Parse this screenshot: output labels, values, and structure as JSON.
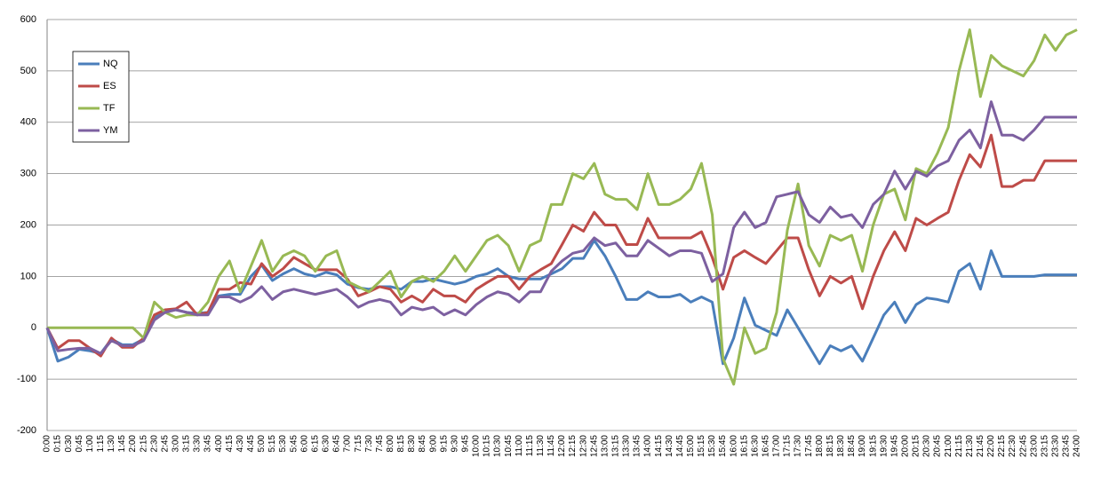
{
  "chart_data": {
    "type": "line",
    "categories": [
      "0:00",
      "0:15",
      "0:30",
      "0:45",
      "1:00",
      "1:15",
      "1:30",
      "1:45",
      "2:00",
      "2:15",
      "2:30",
      "2:45",
      "3:00",
      "3:15",
      "3:30",
      "3:45",
      "4:00",
      "4:15",
      "4:30",
      "4:45",
      "5:00",
      "5:15",
      "5:30",
      "5:45",
      "6:00",
      "6:15",
      "6:30",
      "6:45",
      "7:00",
      "7:15",
      "7:30",
      "7:45",
      "8:00",
      "8:15",
      "8:30",
      "8:45",
      "9:00",
      "9:15",
      "9:30",
      "9:45",
      "10:00",
      "10:15",
      "10:30",
      "10:45",
      "11:00",
      "11:15",
      "11:30",
      "11:45",
      "12:00",
      "12:15",
      "12:30",
      "12:45",
      "13:00",
      "13:15",
      "13:30",
      "13:45",
      "14:00",
      "14:15",
      "14:30",
      "14:45",
      "15:00",
      "15:15",
      "15:30",
      "15:45",
      "16:00",
      "16:15",
      "16:30",
      "16:45",
      "17:00",
      "17:15",
      "17:30",
      "17:45",
      "18:00",
      "18:15",
      "18:30",
      "18:45",
      "19:00",
      "19:15",
      "19:30",
      "19:45",
      "20:00",
      "20:15",
      "20:30",
      "20:45",
      "21:00",
      "21:15",
      "21:30",
      "21:45",
      "22:00",
      "22:15",
      "22:30",
      "22:45",
      "23:00",
      "23:15",
      "23:30",
      "23:45",
      "24:00"
    ],
    "series": [
      {
        "name": "NQ",
        "color": "#4a7ebb",
        "values": [
          0,
          -65,
          -57,
          -42,
          -45,
          -50,
          -22,
          -33,
          -33,
          -22,
          20,
          35,
          35,
          30,
          28,
          30,
          62,
          65,
          65,
          100,
          122,
          92,
          105,
          115,
          105,
          100,
          108,
          103,
          85,
          78,
          75,
          80,
          80,
          75,
          90,
          90,
          95,
          90,
          85,
          90,
          100,
          105,
          115,
          100,
          95,
          95,
          95,
          105,
          115,
          135,
          135,
          170,
          140,
          100,
          55,
          55,
          70,
          60,
          60,
          65,
          50,
          60,
          50,
          -70,
          -20,
          58,
          5,
          -5,
          -15,
          35,
          0,
          -35,
          -70,
          -35,
          -45,
          -35,
          -65,
          -20,
          25,
          50,
          10,
          45,
          58,
          55,
          50,
          110,
          125,
          75,
          150,
          100,
          100,
          100,
          100,
          103,
          103,
          103,
          103
        ]
      },
      {
        "name": "ES",
        "color": "#be4b48",
        "values": [
          0,
          -40,
          -25,
          -25,
          -40,
          -55,
          -20,
          -38,
          -38,
          -20,
          25,
          35,
          37,
          50,
          25,
          30,
          75,
          75,
          88,
          85,
          125,
          100,
          115,
          137,
          125,
          113,
          113,
          113,
          95,
          62,
          70,
          80,
          75,
          50,
          62,
          50,
          75,
          62,
          62,
          50,
          75,
          88,
          100,
          100,
          75,
          100,
          113,
          125,
          162,
          200,
          188,
          225,
          200,
          200,
          162,
          162,
          213,
          175,
          175,
          175,
          175,
          187,
          137,
          75,
          137,
          150,
          137,
          125,
          150,
          175,
          175,
          113,
          62,
          100,
          87,
          100,
          37,
          100,
          150,
          187,
          150,
          213,
          200,
          213,
          225,
          287,
          337,
          313,
          375,
          275,
          275,
          287,
          287,
          325,
          325,
          325,
          325
        ]
      },
      {
        "name": "TF",
        "color": "#98b954",
        "values": [
          0,
          0,
          0,
          0,
          0,
          0,
          0,
          0,
          0,
          -20,
          50,
          30,
          20,
          25,
          25,
          50,
          100,
          130,
          70,
          120,
          170,
          110,
          140,
          150,
          140,
          110,
          140,
          150,
          90,
          80,
          70,
          90,
          110,
          60,
          90,
          100,
          90,
          110,
          140,
          110,
          140,
          170,
          180,
          160,
          110,
          160,
          170,
          240,
          240,
          300,
          290,
          320,
          260,
          250,
          250,
          230,
          300,
          240,
          240,
          250,
          270,
          320,
          220,
          -60,
          -110,
          0,
          -50,
          -40,
          30,
          190,
          280,
          160,
          120,
          180,
          170,
          180,
          110,
          200,
          260,
          270,
          210,
          310,
          300,
          340,
          390,
          500,
          580,
          450,
          530,
          510,
          500,
          490,
          520,
          570,
          540,
          570,
          580
        ]
      },
      {
        "name": "YM",
        "color": "#7d60a0",
        "values": [
          0,
          -45,
          -42,
          -40,
          -40,
          -50,
          -25,
          -35,
          -35,
          -25,
          15,
          30,
          35,
          30,
          25,
          25,
          60,
          60,
          50,
          60,
          80,
          55,
          70,
          75,
          70,
          65,
          70,
          75,
          60,
          40,
          50,
          55,
          50,
          25,
          40,
          35,
          40,
          25,
          35,
          25,
          45,
          60,
          70,
          65,
          50,
          70,
          70,
          110,
          130,
          145,
          150,
          175,
          160,
          165,
          140,
          140,
          170,
          155,
          140,
          150,
          150,
          145,
          90,
          105,
          195,
          225,
          195,
          205,
          255,
          260,
          265,
          220,
          205,
          235,
          215,
          220,
          195,
          240,
          260,
          305,
          270,
          305,
          295,
          315,
          325,
          365,
          385,
          350,
          440,
          375,
          375,
          365,
          385,
          410,
          410,
          410,
          410
        ]
      }
    ],
    "ylim": [
      -200,
      600
    ],
    "yticks": [
      -200,
      -100,
      0,
      100,
      200,
      300,
      400,
      500,
      600
    ],
    "grid": true,
    "legend": "upper-left"
  }
}
